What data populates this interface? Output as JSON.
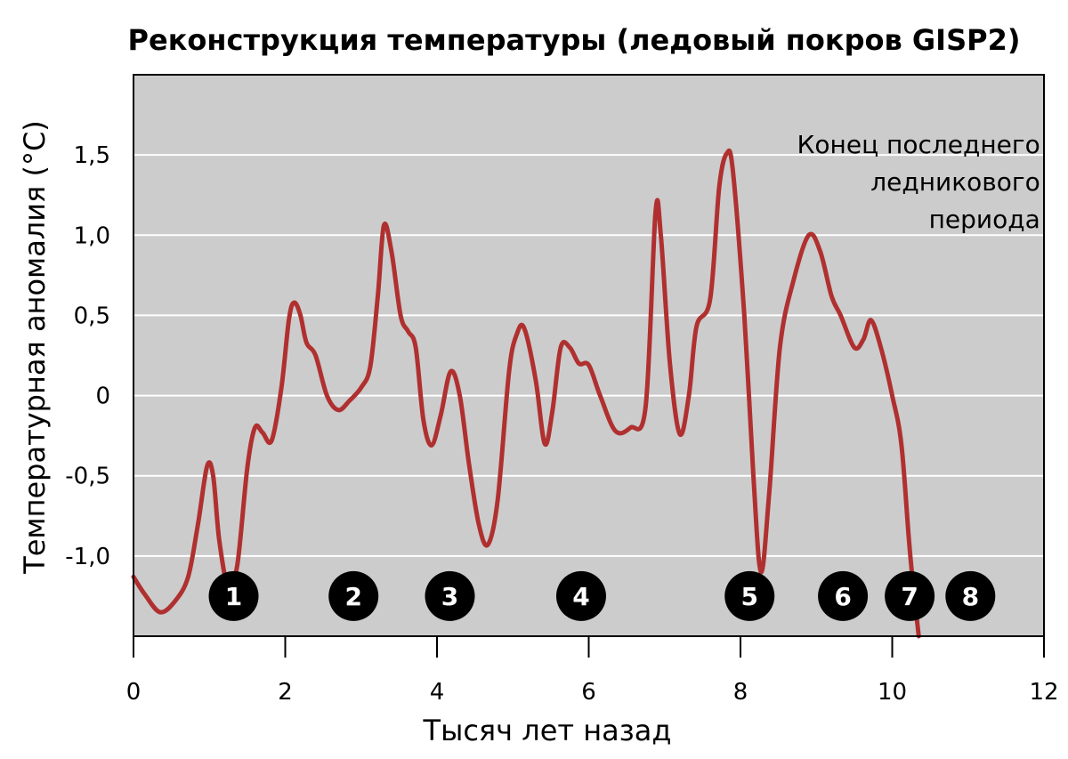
{
  "chart_data": {
    "type": "line",
    "title": "Реконструкция температуры (ледовый покров GISP2)",
    "xlabel": "Тысяч лет назад",
    "ylabel": "Температурная аномалия (°C)",
    "xlim": [
      0,
      12
    ],
    "ylim": [
      -1.5,
      2.0
    ],
    "grid": true,
    "x_ticks": [
      {
        "value": 0,
        "label": "0"
      },
      {
        "value": 2,
        "label": "2"
      },
      {
        "value": 4,
        "label": "4"
      },
      {
        "value": 6,
        "label": "6"
      },
      {
        "value": 8,
        "label": "8"
      },
      {
        "value": 10,
        "label": "10"
      },
      {
        "value": 12,
        "label": "12"
      }
    ],
    "y_ticks": [
      {
        "value": 1.5,
        "label": "1,5"
      },
      {
        "value": 1.0,
        "label": "1,0"
      },
      {
        "value": 0.5,
        "label": "0,5"
      },
      {
        "value": 0,
        "label": "0"
      },
      {
        "value": -0.5,
        "label": "-0,5"
      },
      {
        "value": -1.0,
        "label": "-1,0"
      }
    ],
    "annotation": {
      "lines": [
        "Конец последнего",
        "ледникового",
        "периода"
      ],
      "x": 11.95,
      "y": 1.6
    },
    "series": [
      {
        "color": "#b03030",
        "points": [
          [
            0.0,
            -1.13
          ],
          [
            0.15,
            -1.24
          ],
          [
            0.35,
            -1.35
          ],
          [
            0.55,
            -1.28
          ],
          [
            0.72,
            -1.13
          ],
          [
            0.85,
            -0.8
          ],
          [
            0.97,
            -0.44
          ],
          [
            1.05,
            -0.5
          ],
          [
            1.13,
            -0.9
          ],
          [
            1.25,
            -1.2
          ],
          [
            1.37,
            -1.05
          ],
          [
            1.5,
            -0.45
          ],
          [
            1.6,
            -0.2
          ],
          [
            1.7,
            -0.23
          ],
          [
            1.82,
            -0.28
          ],
          [
            1.95,
            0.05
          ],
          [
            2.05,
            0.48
          ],
          [
            2.12,
            0.58
          ],
          [
            2.2,
            0.5
          ],
          [
            2.28,
            0.33
          ],
          [
            2.4,
            0.25
          ],
          [
            2.55,
            0.0
          ],
          [
            2.7,
            -0.09
          ],
          [
            2.85,
            -0.03
          ],
          [
            3.0,
            0.05
          ],
          [
            3.12,
            0.18
          ],
          [
            3.22,
            0.62
          ],
          [
            3.3,
            1.06
          ],
          [
            3.4,
            0.9
          ],
          [
            3.52,
            0.5
          ],
          [
            3.62,
            0.4
          ],
          [
            3.72,
            0.3
          ],
          [
            3.82,
            -0.15
          ],
          [
            3.93,
            -0.31
          ],
          [
            4.05,
            -0.12
          ],
          [
            4.18,
            0.15
          ],
          [
            4.3,
            0.0
          ],
          [
            4.42,
            -0.42
          ],
          [
            4.55,
            -0.8
          ],
          [
            4.67,
            -0.93
          ],
          [
            4.8,
            -0.65
          ],
          [
            4.95,
            0.15
          ],
          [
            5.05,
            0.38
          ],
          [
            5.15,
            0.42
          ],
          [
            5.3,
            0.1
          ],
          [
            5.42,
            -0.3
          ],
          [
            5.52,
            -0.1
          ],
          [
            5.63,
            0.3
          ],
          [
            5.75,
            0.3
          ],
          [
            5.87,
            0.2
          ],
          [
            6.0,
            0.19
          ],
          [
            6.15,
            0.0
          ],
          [
            6.35,
            -0.22
          ],
          [
            6.55,
            -0.2
          ],
          [
            6.75,
            -0.07
          ],
          [
            6.88,
            1.14
          ],
          [
            6.95,
            1.0
          ],
          [
            7.07,
            0.2
          ],
          [
            7.2,
            -0.24
          ],
          [
            7.32,
            0.0
          ],
          [
            7.42,
            0.43
          ],
          [
            7.6,
            0.6
          ],
          [
            7.72,
            1.3
          ],
          [
            7.82,
            1.51
          ],
          [
            7.9,
            1.4
          ],
          [
            8.05,
            0.5
          ],
          [
            8.17,
            -0.5
          ],
          [
            8.27,
            -1.1
          ],
          [
            8.38,
            -0.6
          ],
          [
            8.52,
            0.3
          ],
          [
            8.7,
            0.72
          ],
          [
            8.9,
            1.0
          ],
          [
            9.05,
            0.9
          ],
          [
            9.2,
            0.62
          ],
          [
            9.32,
            0.5
          ],
          [
            9.5,
            0.3
          ],
          [
            9.62,
            0.35
          ],
          [
            9.72,
            0.47
          ],
          [
            9.85,
            0.3
          ],
          [
            10.0,
            0.0
          ],
          [
            10.12,
            -0.3
          ],
          [
            10.22,
            -0.9
          ],
          [
            10.28,
            -1.2
          ],
          [
            10.35,
            -1.5
          ]
        ]
      }
    ],
    "markers": [
      {
        "label": "1",
        "x": 1.32
      },
      {
        "label": "2",
        "x": 2.9
      },
      {
        "label": "3",
        "x": 4.17
      },
      {
        "label": "4",
        "x": 5.9
      },
      {
        "label": "5",
        "x": 8.12
      },
      {
        "label": "6",
        "x": 9.35
      },
      {
        "label": "7",
        "x": 10.23
      },
      {
        "label": "8",
        "x": 11.03
      }
    ],
    "marker_y": -1.25
  }
}
